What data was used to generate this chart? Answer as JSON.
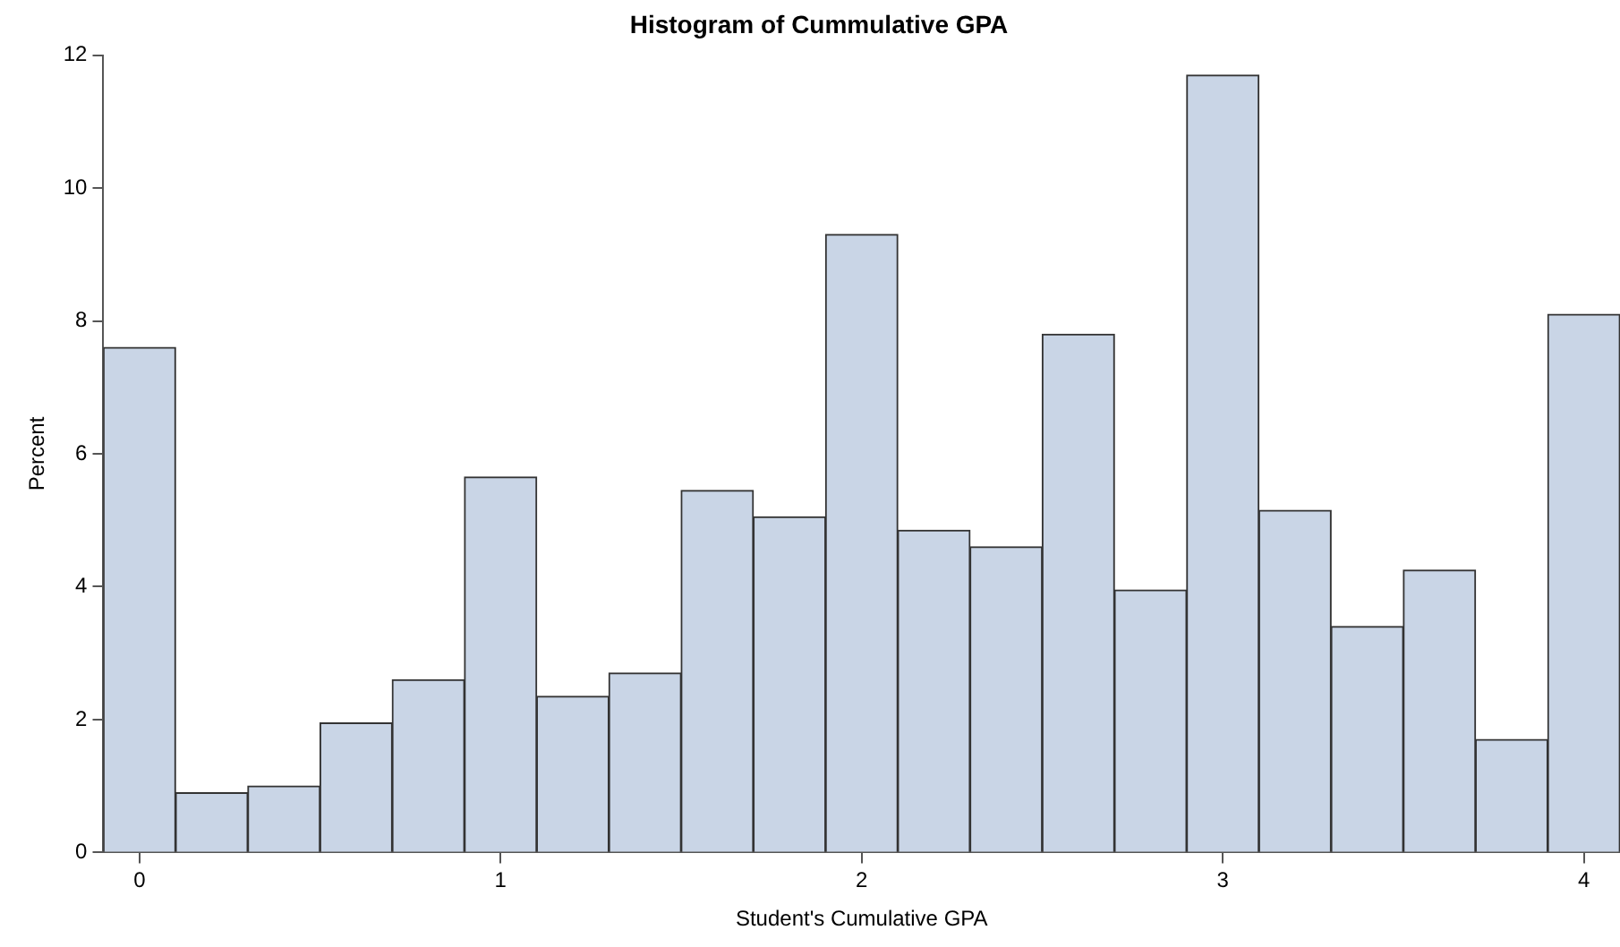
{
  "chart_data": {
    "type": "histogram",
    "title": "Histogram of Cummulative GPA",
    "xlabel": "Student's Cumulative GPA",
    "ylabel": "Percent",
    "bins": [
      -0.1,
      0.1,
      0.3,
      0.5,
      0.7,
      0.9,
      1.1,
      1.3,
      1.5,
      1.7,
      1.9,
      2.1,
      2.3,
      2.5,
      2.7,
      2.9,
      3.1,
      3.3,
      3.5,
      3.7,
      3.9,
      4.1
    ],
    "values": [
      7.6,
      0.9,
      1.0,
      1.95,
      2.6,
      5.65,
      2.35,
      2.7,
      5.45,
      5.05,
      9.3,
      4.85,
      4.6,
      7.8,
      3.95,
      11.7,
      5.15,
      3.4,
      4.25,
      1.7,
      8.1
    ],
    "color": "#c9d5e6",
    "xlim": [
      -0.1,
      4.1
    ],
    "xticks": [
      0,
      1,
      2,
      3,
      4
    ],
    "ylim": [
      0,
      12
    ],
    "yticks": [
      0,
      2,
      4,
      6,
      8,
      10,
      12
    ],
    "grid": false,
    "legend": false
  }
}
